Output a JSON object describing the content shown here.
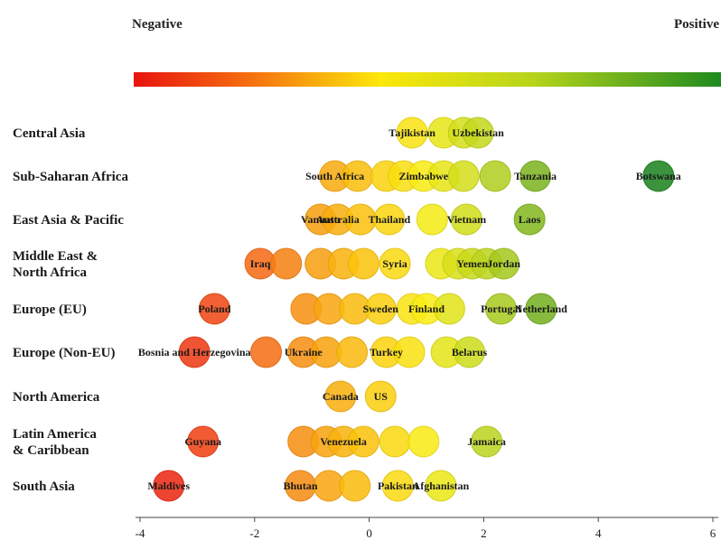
{
  "chart_data": {
    "type": "scatter",
    "legend": {
      "negative": "Negative",
      "positive": "Positive"
    },
    "xlim": [
      -4,
      6
    ],
    "x_ticks": [
      "-4",
      "-2",
      "0",
      "2",
      "4",
      "6"
    ],
    "rows": [
      {
        "region": "Central Asia",
        "region_lines": [
          "Central Asia"
        ],
        "points": [
          {
            "x": 0.75,
            "label": "Tajikistan"
          },
          {
            "x": 1.3
          },
          {
            "x": 1.65
          },
          {
            "x": 1.9,
            "label": "Uzbekistan"
          }
        ]
      },
      {
        "region": "Sub-Saharan Africa",
        "region_lines": [
          "Sub-Saharan Africa"
        ],
        "points": [
          {
            "x": -0.6,
            "label": "South Africa"
          },
          {
            "x": -0.2
          },
          {
            "x": 0.3
          },
          {
            "x": 0.6
          },
          {
            "x": 0.95,
            "label": "Zimbabwe"
          },
          {
            "x": 1.3
          },
          {
            "x": 1.65
          },
          {
            "x": 2.2
          },
          {
            "x": 2.9,
            "label": "Tanzania"
          },
          {
            "x": 5.05,
            "label": "Botswana"
          }
        ]
      },
      {
        "region": "East Asia & Pacific",
        "region_lines": [
          "East Asia & Pacific"
        ],
        "points": [
          {
            "x": -0.85,
            "label": "Vanuatu"
          },
          {
            "x": -0.55,
            "label": "Australia"
          },
          {
            "x": -0.15
          },
          {
            "x": 0.35,
            "label": "Thailand"
          },
          {
            "x": 1.1
          },
          {
            "x": 1.7,
            "label": "Vietnam"
          },
          {
            "x": 2.8,
            "label": "Laos"
          }
        ]
      },
      {
        "region": "Middle East & North Africa",
        "region_lines": [
          "Middle East &",
          "North Africa"
        ],
        "points": [
          {
            "x": -1.9,
            "label": "Iraq"
          },
          {
            "x": -1.45
          },
          {
            "x": -0.85
          },
          {
            "x": -0.45
          },
          {
            "x": -0.1
          },
          {
            "x": 0.45,
            "label": "Syria"
          },
          {
            "x": 1.25
          },
          {
            "x": 1.55
          },
          {
            "x": 1.8,
            "label": "Yemen"
          },
          {
            "x": 2.05
          },
          {
            "x": 2.35,
            "label": "Jordan"
          }
        ]
      },
      {
        "region": "Europe (EU)",
        "region_lines": [
          "Europe (EU)"
        ],
        "points": [
          {
            "x": -2.7,
            "label": "Poland"
          },
          {
            "x": -1.1
          },
          {
            "x": -0.7
          },
          {
            "x": -0.25
          },
          {
            "x": 0.2,
            "label": "Sweden"
          },
          {
            "x": 0.75
          },
          {
            "x": 1.0,
            "label": "Finland"
          },
          {
            "x": 1.4
          },
          {
            "x": 2.3,
            "label": "Portugal"
          },
          {
            "x": 3.0,
            "label": "Netherland"
          }
        ]
      },
      {
        "region": "Europe (Non-EU)",
        "region_lines": [
          "Europe (Non-EU)"
        ],
        "points": [
          {
            "x": -3.05,
            "label": "Bosnia and Herzegovina"
          },
          {
            "x": -1.8
          },
          {
            "x": -1.15,
            "label": "Ukraine"
          },
          {
            "x": -0.75
          },
          {
            "x": -0.3
          },
          {
            "x": 0.3,
            "label": "Turkey"
          },
          {
            "x": 0.7
          },
          {
            "x": 1.35
          },
          {
            "x": 1.75,
            "label": "Belarus"
          }
        ]
      },
      {
        "region": "North America",
        "region_lines": [
          "North America"
        ],
        "points": [
          {
            "x": -0.5,
            "label": "Canada"
          },
          {
            "x": 0.2,
            "label": "US"
          }
        ]
      },
      {
        "region": "Latin America & Caribbean",
        "region_lines": [
          "Latin America",
          "& Caribbean"
        ],
        "points": [
          {
            "x": -2.9,
            "label": "Guyana"
          },
          {
            "x": -1.15
          },
          {
            "x": -0.75
          },
          {
            "x": -0.45,
            "label": "Venezuela"
          },
          {
            "x": -0.1
          },
          {
            "x": 0.45
          },
          {
            "x": 0.95
          },
          {
            "x": 2.05,
            "label": "Jamaica"
          }
        ]
      },
      {
        "region": "South Asia",
        "region_lines": [
          "South Asia"
        ],
        "points": [
          {
            "x": -3.5,
            "label": "Maldives"
          },
          {
            "x": -1.2,
            "label": "Bhutan"
          },
          {
            "x": -0.7
          },
          {
            "x": -0.25
          },
          {
            "x": 0.5,
            "label": "Pakistan"
          },
          {
            "x": 1.25,
            "label": "Afghanistan"
          }
        ]
      }
    ]
  }
}
